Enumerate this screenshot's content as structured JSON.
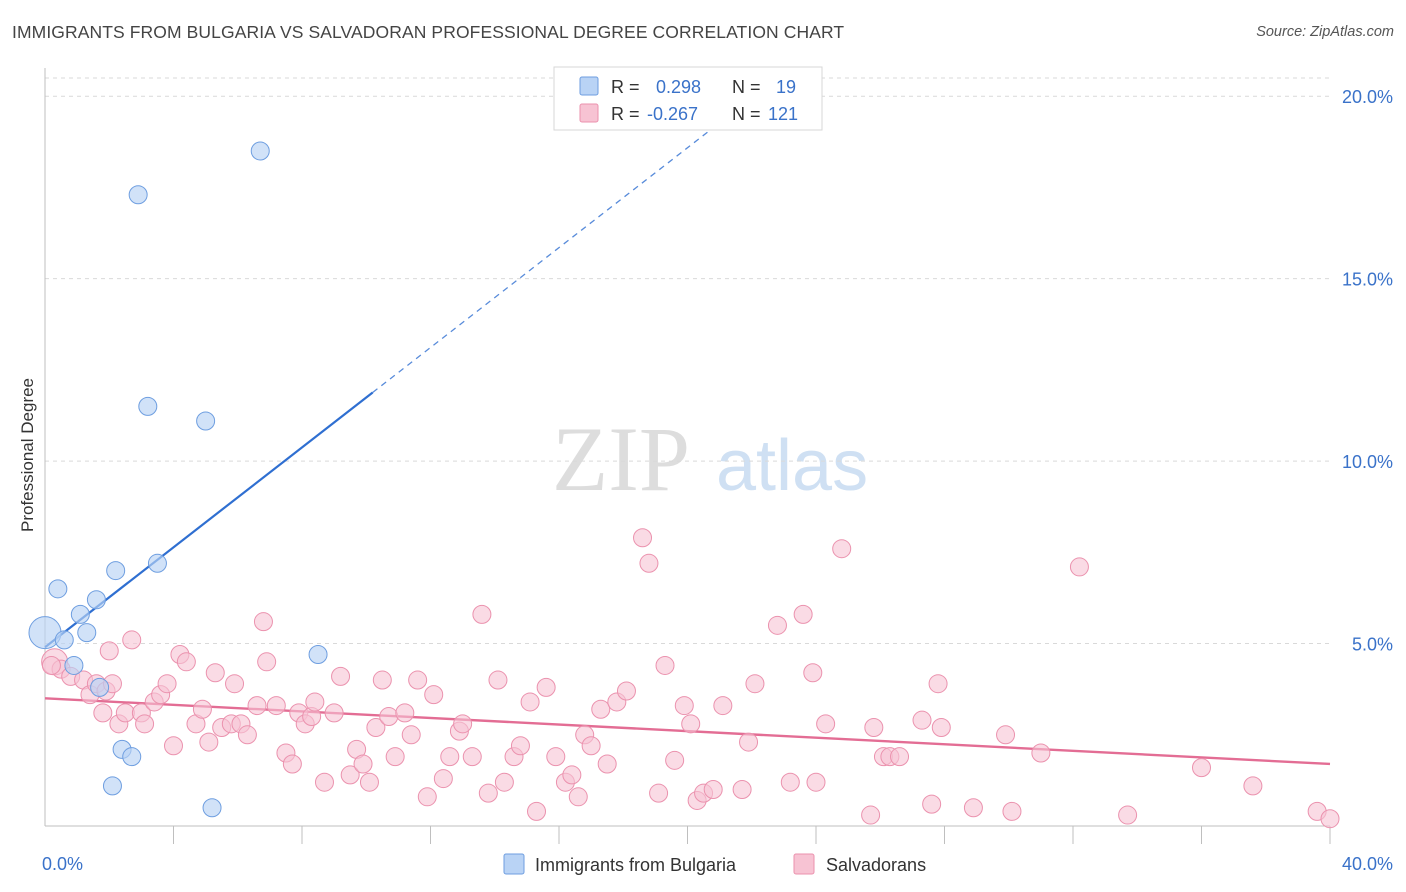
{
  "header": {
    "title": "IMMIGRANTS FROM BULGARIA VS SALVADORAN PROFESSIONAL DEGREE CORRELATION CHART",
    "source": "Source: ZipAtlas.com"
  },
  "watermark": {
    "zip": "ZIP",
    "atlas": "atlas"
  },
  "colors": {
    "blue_fill": "#b9d3f5",
    "blue_stroke": "#6e9ee0",
    "blue_line": "#2f6fd1",
    "pink_fill": "#f7c3d3",
    "pink_stroke": "#eb92ae",
    "pink_line": "#e36d94",
    "label_blue": "#3a72c9",
    "grid": "#d9d9d9"
  },
  "legend_top": {
    "rows": [
      {
        "r_label": "R =",
        "r_value": "0.298",
        "n_label": "N =",
        "n_value": "19",
        "color": "blue"
      },
      {
        "r_label": "R =",
        "r_value": "-0.267",
        "n_label": "N =",
        "n_value": "121",
        "color": "pink"
      }
    ]
  },
  "legend_bottom": {
    "items": [
      {
        "label": "Immigrants from Bulgaria",
        "color": "blue"
      },
      {
        "label": "Salvadorans",
        "color": "pink"
      }
    ]
  },
  "chart_data": {
    "type": "scatter",
    "title": "IMMIGRANTS FROM BULGARIA VS SALVADORAN PROFESSIONAL DEGREE CORRELATION CHART",
    "xlabel": "",
    "ylabel": "Professional Degree",
    "xlim": [
      0,
      40
    ],
    "ylim": [
      0,
      20.5
    ],
    "x_tick_labels": [
      {
        "value": 0,
        "label": "0.0%"
      },
      {
        "value": 40,
        "label": "40.0%"
      }
    ],
    "x_minor_ticks": [
      4,
      8,
      12,
      16,
      20,
      24,
      28,
      32,
      36
    ],
    "y_ticks": [
      {
        "value": 5,
        "label": "5.0%"
      },
      {
        "value": 10,
        "label": "10.0%"
      },
      {
        "value": 15,
        "label": "15.0%"
      },
      {
        "value": 20,
        "label": "20.0%"
      }
    ],
    "series": [
      {
        "name": "Immigrants from Bulgaria",
        "color": "blue",
        "R": 0.298,
        "N": 19,
        "trend": {
          "x0": 0,
          "y0": 4.9,
          "x_solid_end": 10.2,
          "x1": 22.5,
          "y1": 20.3
        },
        "points": [
          [
            0.0,
            5.3,
            16
          ],
          [
            0.4,
            6.5,
            9
          ],
          [
            0.6,
            5.1,
            9
          ],
          [
            0.9,
            4.4,
            9
          ],
          [
            1.1,
            5.8,
            9
          ],
          [
            1.3,
            5.3,
            9
          ],
          [
            1.6,
            6.2,
            9
          ],
          [
            1.7,
            3.8,
            9
          ],
          [
            2.1,
            1.1,
            9
          ],
          [
            2.2,
            7.0,
            9
          ],
          [
            2.4,
            2.1,
            9
          ],
          [
            2.7,
            1.9,
            9
          ],
          [
            2.9,
            17.3,
            9
          ],
          [
            3.2,
            11.5,
            9
          ],
          [
            3.5,
            7.2,
            9
          ],
          [
            5.0,
            11.1,
            9
          ],
          [
            5.2,
            0.5,
            9
          ],
          [
            6.7,
            18.5,
            9
          ],
          [
            8.5,
            4.7,
            9
          ]
        ]
      },
      {
        "name": "Salvadorans",
        "color": "pink",
        "R": -0.267,
        "N": 121,
        "trend": {
          "x0": 0,
          "y0": 3.5,
          "x1": 40,
          "y1": 1.7
        },
        "points": [
          [
            0.3,
            4.5,
            13
          ],
          [
            0.5,
            4.3,
            9
          ],
          [
            0.8,
            4.1,
            9
          ],
          [
            1.2,
            4.0,
            9
          ],
          [
            1.4,
            3.6,
            9
          ],
          [
            1.6,
            3.9,
            9
          ],
          [
            1.8,
            3.1,
            9
          ],
          [
            1.9,
            3.7,
            9
          ],
          [
            2.0,
            4.8,
            9
          ],
          [
            2.1,
            3.9,
            9
          ],
          [
            2.3,
            2.8,
            9
          ],
          [
            2.5,
            3.1,
            9
          ],
          [
            2.7,
            5.1,
            9
          ],
          [
            3.0,
            3.1,
            9
          ],
          [
            3.1,
            2.8,
            9
          ],
          [
            3.4,
            3.4,
            9
          ],
          [
            3.6,
            3.6,
            9
          ],
          [
            3.8,
            3.9,
            9
          ],
          [
            4.0,
            2.2,
            9
          ],
          [
            4.2,
            4.7,
            9
          ],
          [
            4.4,
            4.5,
            9
          ],
          [
            4.7,
            2.8,
            9
          ],
          [
            4.9,
            3.2,
            9
          ],
          [
            5.1,
            2.3,
            9
          ],
          [
            5.3,
            4.2,
            9
          ],
          [
            5.5,
            2.7,
            9
          ],
          [
            5.8,
            2.8,
            9
          ],
          [
            5.9,
            3.9,
            9
          ],
          [
            6.1,
            2.8,
            9
          ],
          [
            6.3,
            2.5,
            9
          ],
          [
            6.6,
            3.3,
            9
          ],
          [
            6.8,
            5.6,
            9
          ],
          [
            6.9,
            4.5,
            9
          ],
          [
            7.2,
            3.3,
            9
          ],
          [
            7.5,
            2.0,
            9
          ],
          [
            7.7,
            1.7,
            9
          ],
          [
            7.9,
            3.1,
            9
          ],
          [
            8.1,
            2.8,
            9
          ],
          [
            8.3,
            3.0,
            9
          ],
          [
            8.4,
            3.4,
            9
          ],
          [
            8.7,
            1.2,
            9
          ],
          [
            9.0,
            3.1,
            9
          ],
          [
            9.2,
            4.1,
            9
          ],
          [
            9.5,
            1.4,
            9
          ],
          [
            9.7,
            2.1,
            9
          ],
          [
            9.9,
            1.7,
            9
          ],
          [
            10.1,
            1.2,
            9
          ],
          [
            10.3,
            2.7,
            9
          ],
          [
            10.5,
            4.0,
            9
          ],
          [
            10.7,
            3.0,
            9
          ],
          [
            10.9,
            1.9,
            9
          ],
          [
            11.2,
            3.1,
            9
          ],
          [
            11.4,
            2.5,
            9
          ],
          [
            11.6,
            4.0,
            9
          ],
          [
            11.9,
            0.8,
            9
          ],
          [
            12.1,
            3.6,
            9
          ],
          [
            12.4,
            1.3,
            9
          ],
          [
            12.6,
            1.9,
            9
          ],
          [
            12.9,
            2.6,
            9
          ],
          [
            13.0,
            2.8,
            9
          ],
          [
            13.3,
            1.9,
            9
          ],
          [
            13.6,
            5.8,
            9
          ],
          [
            13.8,
            0.9,
            9
          ],
          [
            14.1,
            4.0,
            9
          ],
          [
            14.3,
            1.2,
            9
          ],
          [
            14.6,
            1.9,
            9
          ],
          [
            14.8,
            2.2,
            9
          ],
          [
            15.1,
            3.4,
            9
          ],
          [
            15.3,
            0.4,
            9
          ],
          [
            15.6,
            3.8,
            9
          ],
          [
            15.9,
            1.9,
            9
          ],
          [
            16.2,
            1.2,
            9
          ],
          [
            16.4,
            1.4,
            9
          ],
          [
            16.6,
            0.8,
            9
          ],
          [
            16.8,
            2.5,
            9
          ],
          [
            17.0,
            2.2,
            9
          ],
          [
            17.3,
            3.2,
            9
          ],
          [
            17.5,
            1.7,
            9
          ],
          [
            17.8,
            3.4,
            9
          ],
          [
            18.1,
            3.7,
            9
          ],
          [
            18.6,
            7.9,
            9
          ],
          [
            18.8,
            7.2,
            9
          ],
          [
            19.1,
            0.9,
            9
          ],
          [
            19.3,
            4.4,
            9
          ],
          [
            19.6,
            1.8,
            9
          ],
          [
            19.9,
            3.3,
            9
          ],
          [
            20.1,
            2.8,
            9
          ],
          [
            20.3,
            0.7,
            9
          ],
          [
            20.5,
            0.9,
            9
          ],
          [
            20.8,
            1.0,
            9
          ],
          [
            21.1,
            3.3,
            9
          ],
          [
            21.7,
            1.0,
            9
          ],
          [
            21.9,
            2.3,
            9
          ],
          [
            22.1,
            3.9,
            9
          ],
          [
            22.8,
            5.5,
            9
          ],
          [
            23.2,
            1.2,
            9
          ],
          [
            23.6,
            5.8,
            9
          ],
          [
            23.9,
            4.2,
            9
          ],
          [
            24.0,
            1.2,
            9
          ],
          [
            24.3,
            2.8,
            9
          ],
          [
            24.8,
            7.6,
            9
          ],
          [
            25.7,
            0.3,
            9
          ],
          [
            25.8,
            2.7,
            9
          ],
          [
            26.1,
            1.9,
            9
          ],
          [
            26.3,
            1.9,
            9
          ],
          [
            26.6,
            1.9,
            9
          ],
          [
            27.3,
            2.9,
            9
          ],
          [
            27.6,
            0.6,
            9
          ],
          [
            27.8,
            3.9,
            9
          ],
          [
            27.9,
            2.7,
            9
          ],
          [
            28.9,
            0.5,
            9
          ],
          [
            29.9,
            2.5,
            9
          ],
          [
            30.1,
            0.4,
            9
          ],
          [
            31.0,
            2.0,
            9
          ],
          [
            32.2,
            7.1,
            9
          ],
          [
            33.7,
            0.3,
            9
          ],
          [
            36.0,
            1.6,
            9
          ],
          [
            37.6,
            1.1,
            9
          ],
          [
            39.6,
            0.4,
            9
          ],
          [
            40.0,
            0.2,
            9
          ],
          [
            0.2,
            4.4,
            9
          ]
        ]
      }
    ]
  }
}
